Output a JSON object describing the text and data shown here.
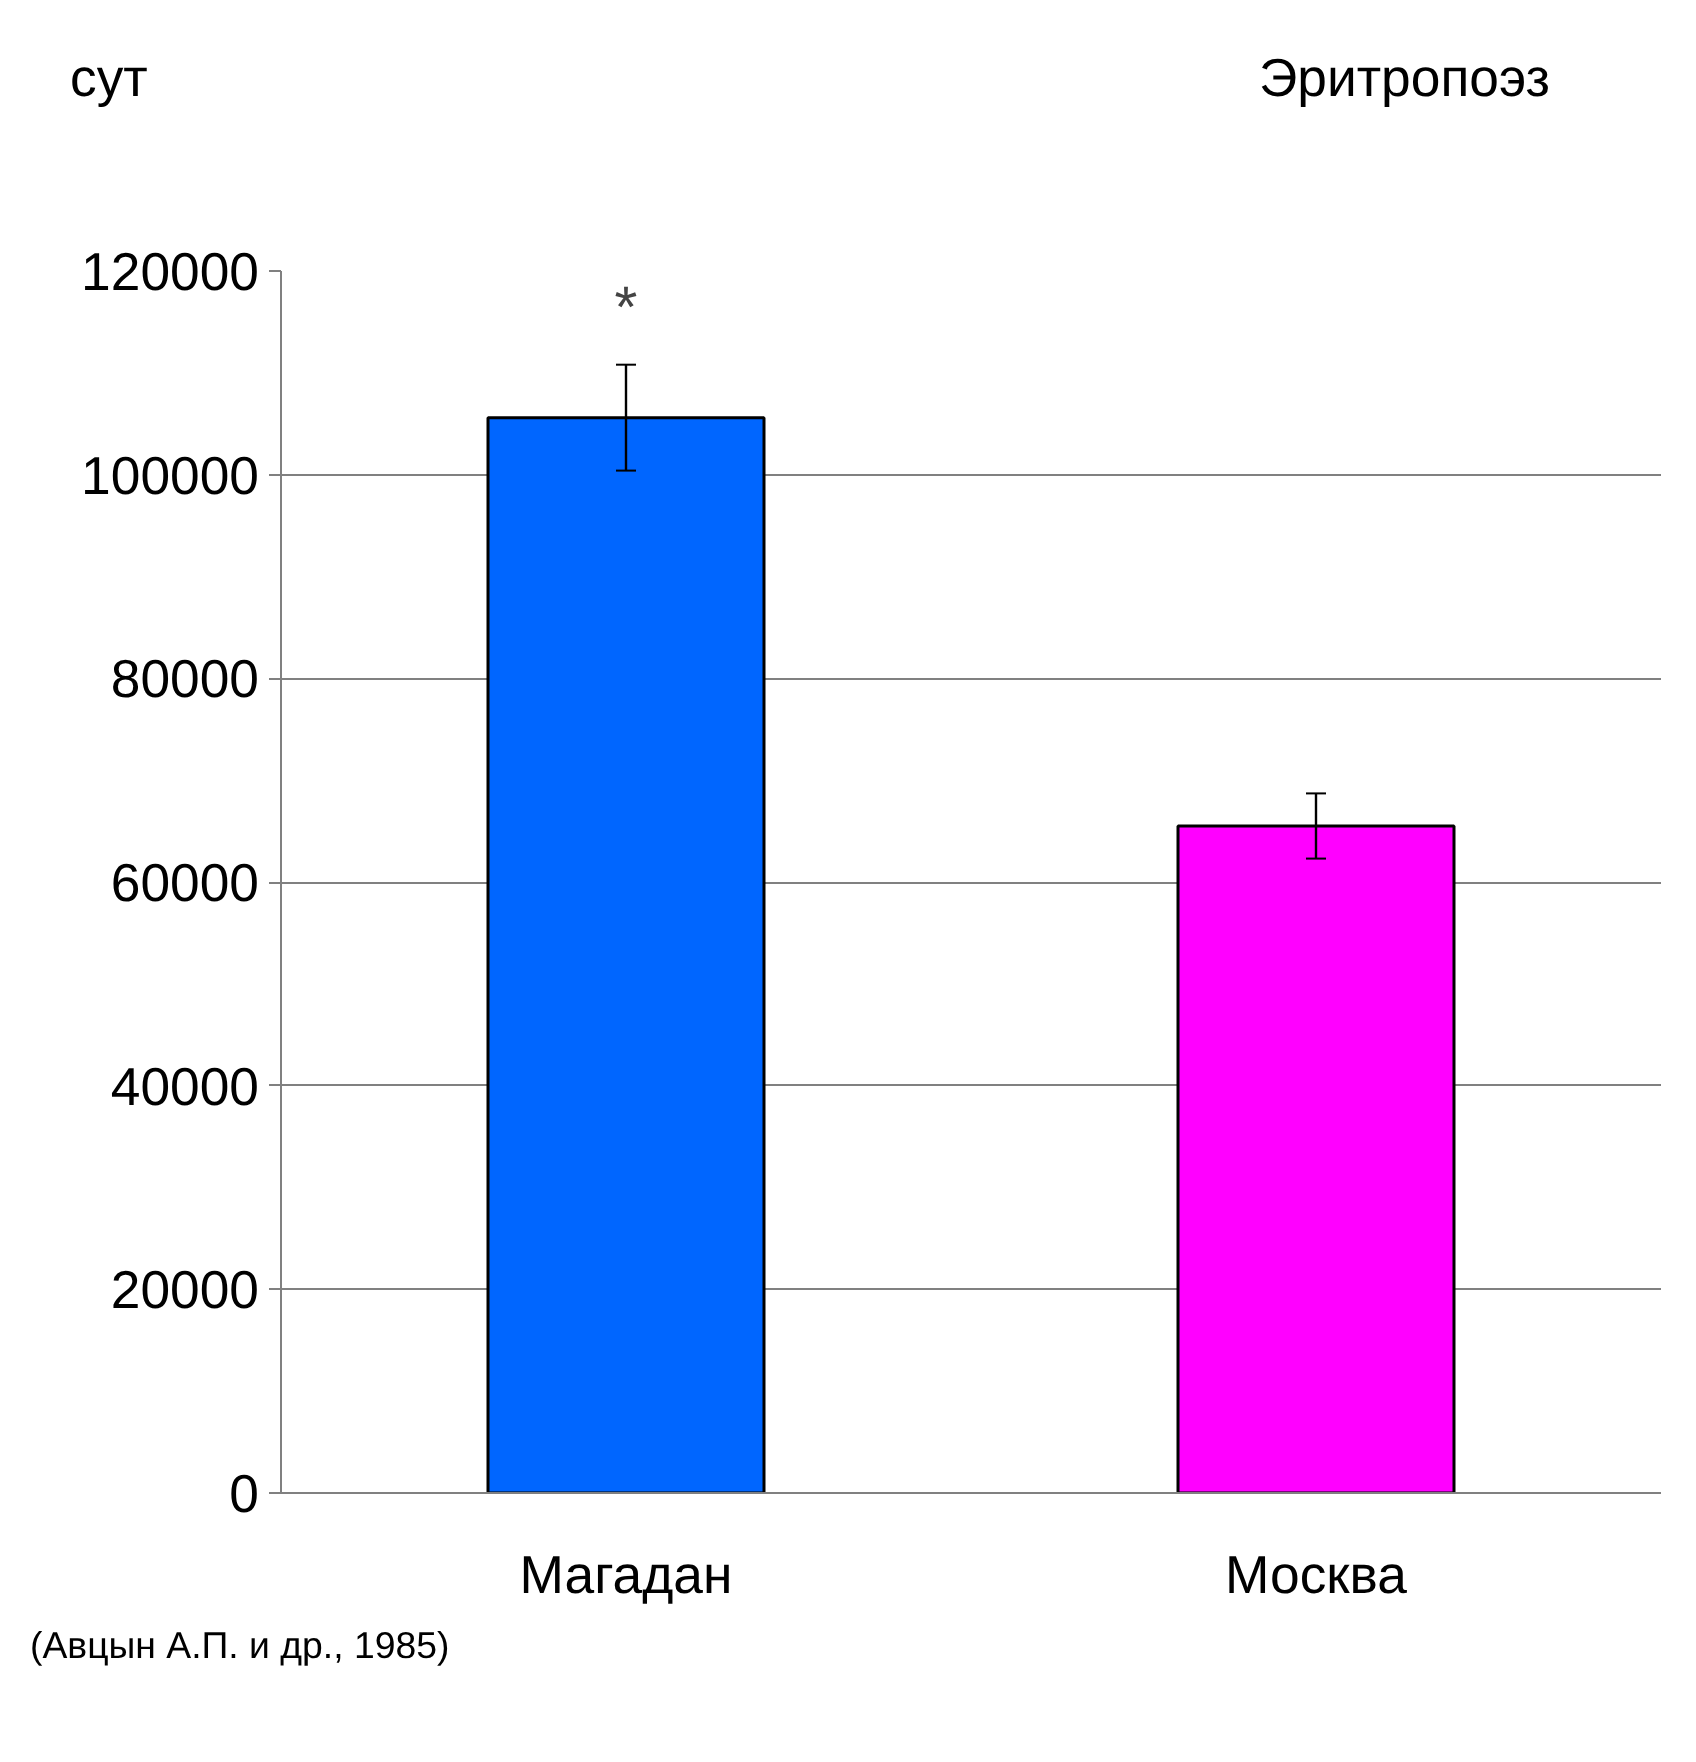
{
  "chart_data": {
    "type": "bar",
    "title": "Эритропоэз",
    "ylabel": "сут",
    "categories": [
      "Магадан",
      "Москва"
    ],
    "values": [
      105600,
      65500
    ],
    "errors": [
      5200,
      3200
    ],
    "colors": [
      "#0066ff",
      "#ff00ff"
    ],
    "ylim": [
      0,
      120000
    ],
    "yticks": [
      0,
      20000,
      40000,
      60000,
      80000,
      100000,
      120000
    ],
    "grid": "y",
    "annotations": [
      "*",
      "(Авцын А.П. и др., 1985)"
    ]
  }
}
